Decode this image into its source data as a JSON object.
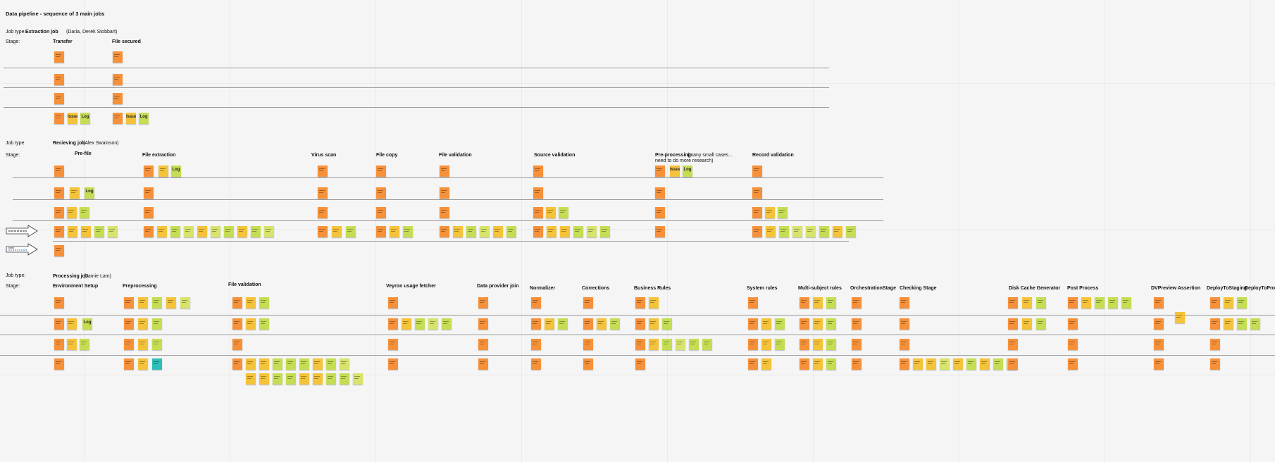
{
  "board": {
    "title": "Data pipeline - sequence of 3 main jobs"
  },
  "colors": {
    "orange": "#f6913a",
    "yellow": "#f5c33a",
    "lime": "#c5dd53",
    "lightgreen": "#d7e36b",
    "teal": "#2cbfb6"
  },
  "extraction": {
    "jobtype_label": "Job type:",
    "name": "Extraction job",
    "owners": "(Daria, Derek Stobbart)",
    "stage_label": "Stage:",
    "stages": [
      "Transfer",
      "File secured"
    ]
  },
  "receiving": {
    "jobtype_label": "Job type",
    "name": "Recieving job",
    "owners": "(Alex Swainson)",
    "stage_label": "Stage:",
    "stages": [
      "Pre-file",
      "File extraction",
      "Virus scan",
      "File copy",
      "File validation",
      "Source validation",
      "Pre-processing",
      "Record validation"
    ],
    "preprocessing_note_1": "(many small cases...",
    "preprocessing_note_2": "need to do more research)"
  },
  "processing": {
    "jobtype_label": "Job type:",
    "name": "Processing job",
    "owners": "(Jamie Lam)",
    "stage_label": "Stage:",
    "stages": [
      "Environment Setup",
      "Preprocessing",
      "File validation",
      "Veyron usage fetcher",
      "Data provider join",
      "Normalizer",
      "Corrections",
      "Business Rules",
      "System rules",
      "Multi-subject rules",
      "OrchestrationStage",
      "Checking Stage",
      "Disk Cache Generator",
      "Post Process",
      "DVPreview Assertion",
      "DeployToStaging",
      "DeployToProd"
    ]
  },
  "labels": {
    "issue": "Issue",
    "log": "Log"
  }
}
